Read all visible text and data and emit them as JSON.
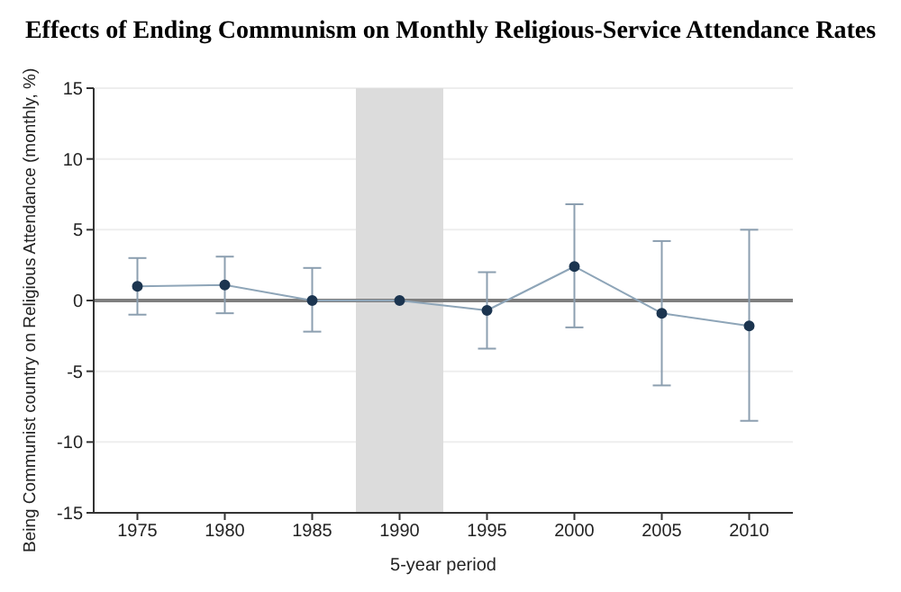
{
  "chart_data": {
    "type": "line",
    "title": "Effects of Ending Communism on Monthly Religious-Service Attendance Rates",
    "xlabel": "5-year period",
    "ylabel": "Being Communist country on Religious Attendance (monthly, %)",
    "x": [
      1975,
      1980,
      1985,
      1990,
      1995,
      2000,
      2005,
      2010
    ],
    "series": [
      {
        "color": "#1c3550",
        "values": [
          1.0,
          1.1,
          0,
          0,
          -0.7,
          2.4,
          -0.9,
          -1.8
        ],
        "errors": [
          [
            -1.0,
            3.0
          ],
          [
            -0.9,
            3.1
          ],
          [
            -2.2,
            2.3
          ],
          null,
          [
            -3.4,
            2.0
          ],
          [
            -1.9,
            6.8
          ],
          [
            -6.0,
            4.2
          ],
          [
            -8.5,
            5.0
          ]
        ]
      }
    ],
    "xlim": [
      1972.5,
      2012.5
    ],
    "xticks": [
      1975,
      1980,
      1985,
      1990,
      1995,
      2000,
      2005,
      2010
    ],
    "ylim": [
      -15,
      15
    ],
    "yticks": [
      -15,
      -10,
      -5,
      0,
      5,
      10,
      15
    ],
    "ref_lines": [
      {
        "axis": "y",
        "value": 0,
        "color": "#7f7f7f"
      }
    ],
    "bands": [
      {
        "axis": "x",
        "from": 1987.5,
        "to": 1992.5,
        "color": "#dcdcdc"
      }
    ],
    "grid": "y",
    "marker": "circle",
    "line_style": "solid"
  }
}
